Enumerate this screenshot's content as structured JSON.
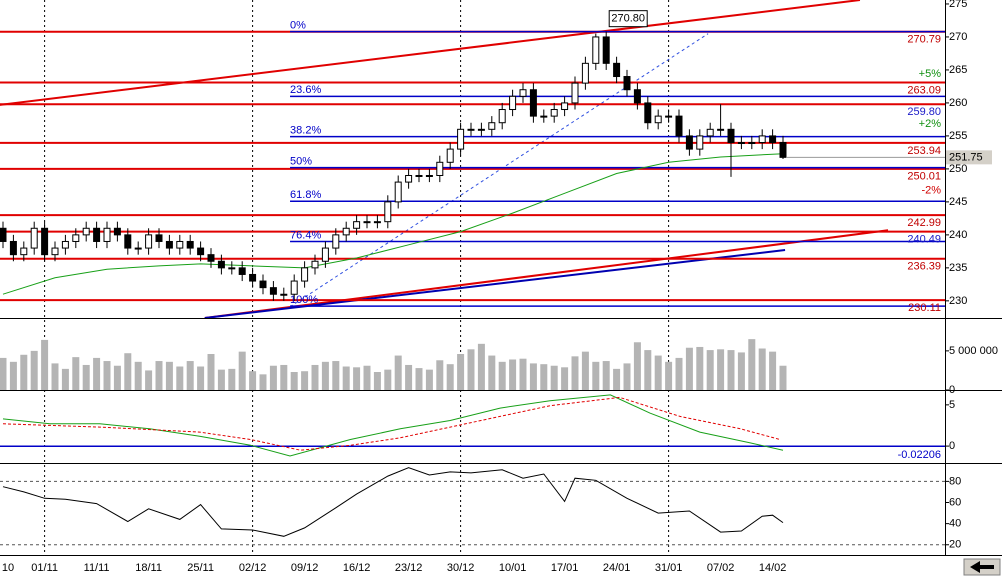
{
  "chart_data": [
    {
      "type": "candlestick",
      "categories": [
        "10",
        null,
        null,
        null,
        "01/11",
        null,
        null,
        null,
        null,
        "11/11",
        null,
        null,
        null,
        null,
        "18/11",
        null,
        null,
        null,
        null,
        "25/11",
        null,
        null,
        null,
        null,
        "02/12",
        null,
        null,
        null,
        null,
        "09/12",
        null,
        null,
        null,
        null,
        "16/12",
        null,
        null,
        null,
        null,
        "23/12",
        null,
        null,
        null,
        null,
        "30/12",
        null,
        null,
        null,
        null,
        "10/01",
        null,
        null,
        null,
        null,
        "17/01",
        null,
        null,
        null,
        null,
        "24/01",
        null,
        null,
        null,
        null,
        "31/01",
        null,
        null,
        null,
        null,
        "07/02",
        null,
        null,
        null,
        null,
        "14/02",
        null
      ],
      "open": [
        241,
        239,
        237,
        238,
        241,
        237,
        238,
        239,
        240,
        241,
        239,
        241,
        240,
        238,
        238,
        240,
        239,
        238,
        239,
        238,
        237,
        236,
        235,
        235,
        234,
        233,
        232,
        231,
        231,
        233,
        235,
        236,
        238,
        240,
        241,
        242,
        242,
        242,
        245,
        248,
        249,
        249,
        249,
        251,
        253,
        256,
        256,
        256,
        257,
        259,
        261,
        262,
        258,
        258,
        259,
        260,
        263,
        266,
        270,
        266,
        264,
        262,
        260,
        257,
        258,
        258,
        255,
        253,
        255,
        256,
        256,
        254,
        254,
        254,
        255,
        254
      ],
      "high": [
        242,
        240,
        239,
        242,
        242,
        239,
        240,
        241,
        242,
        242,
        242,
        242,
        241,
        239,
        241,
        241,
        240,
        240,
        240,
        239,
        238,
        237,
        236,
        236,
        235,
        234,
        233,
        232,
        234,
        236,
        237,
        239,
        241,
        242,
        243,
        243,
        243,
        246,
        249,
        250,
        250,
        250,
        252,
        254,
        257,
        257,
        257,
        258,
        260,
        262,
        263,
        263,
        259,
        260,
        261,
        264,
        267,
        270.5,
        270.8,
        267,
        265,
        263,
        261,
        259,
        259,
        259,
        256,
        256,
        257,
        259.8,
        257,
        255,
        255,
        256,
        256,
        255
      ],
      "low": [
        238,
        236,
        236,
        237,
        236,
        236,
        237,
        238,
        239,
        238,
        238,
        239,
        237,
        237,
        237,
        238,
        237,
        237,
        237,
        236,
        235,
        234,
        234,
        233,
        232,
        231,
        230,
        230,
        230,
        232,
        234,
        235,
        237,
        239,
        240,
        241,
        241,
        241,
        244,
        247,
        248,
        248,
        248,
        250,
        252,
        255,
        255,
        255,
        256,
        258,
        260,
        257,
        257,
        257,
        258,
        259,
        262,
        265,
        265,
        263,
        261,
        259,
        256,
        256,
        257,
        254,
        252,
        252,
        254,
        255,
        248.8,
        253,
        253,
        253,
        253,
        251.5
      ],
      "close": [
        239,
        237,
        238,
        241,
        237,
        238,
        239,
        240,
        241,
        239,
        241,
        240,
        238,
        238,
        240,
        239,
        238,
        239,
        238,
        237,
        236,
        235,
        235,
        234,
        233,
        232,
        231,
        231,
        233,
        235,
        236,
        238,
        240,
        241,
        242,
        242,
        242,
        245,
        248,
        249,
        249,
        249,
        251,
        253,
        256,
        256,
        256,
        257,
        259,
        261,
        262,
        258,
        258,
        259,
        260,
        263,
        266,
        270,
        266,
        264,
        262,
        260,
        257,
        258,
        258,
        255,
        253,
        255,
        256,
        256,
        254,
        254,
        254,
        255,
        254,
        251.75
      ],
      "color_up": "#ffffff",
      "color_down": "#000000",
      "ylim": [
        227.4,
        275.6
      ],
      "yticks": [
        230,
        235,
        240,
        245,
        250,
        255,
        260,
        265,
        270,
        275
      ],
      "ma": {
        "color": "#18a018",
        "x": [
          0,
          5,
          10,
          15,
          19,
          24,
          29,
          34,
          39,
          44,
          49,
          54,
          59,
          64,
          69,
          75
        ],
        "values": [
          231,
          233.5,
          234.8,
          235.3,
          235.6,
          235.3,
          235,
          236.5,
          238.5,
          240.5,
          243.3,
          246.3,
          249.3,
          251,
          251.8,
          252.3
        ]
      },
      "levels": [
        {
          "value": 270.79,
          "label": "270.79",
          "color": "#e00000",
          "label_color": "#c00000"
        },
        {
          "value": 263.09,
          "label": "263.09",
          "color": "#e00000",
          "label_color": "#c00000"
        },
        {
          "value": 259.8,
          "label": "259.80",
          "color": "#e00000",
          "label_color": "#1a1ac8"
        },
        {
          "value": 253.94,
          "label": "253.94",
          "color": "#e00000",
          "label_color": "#c00000"
        },
        {
          "value": 250.01,
          "label": "250.01",
          "color": "#e00000",
          "label_color": "#c00000"
        },
        {
          "value": 242.99,
          "label": "242.99",
          "color": "#e00000",
          "label_color": "#c00000"
        },
        {
          "value": 240.49,
          "label": "240.49",
          "color": "#e00000",
          "label_color": "#1a1ac8"
        },
        {
          "value": 236.39,
          "label": "236.39",
          "color": "#e00000",
          "label_color": "#c00000"
        },
        {
          "value": 230.11,
          "label": "230.11",
          "color": "#e00000",
          "label_color": "#c00000"
        }
      ],
      "fib": {
        "color": "#0000c8",
        "x": 27.6,
        "levels": [
          {
            "label": "0%",
            "value": 270.8
          },
          {
            "label": "23.6%",
            "value": 261
          },
          {
            "label": "38.2%",
            "value": 254.9
          },
          {
            "label": "50%",
            "value": 250.2
          },
          {
            "label": "61.8%",
            "value": 245.1
          },
          {
            "label": "76.4%",
            "value": 239
          },
          {
            "label": "100%",
            "value": 229.2
          }
        ]
      },
      "trend_lines": [
        {
          "color": "#e00000",
          "x": [
            -0.3,
            82.4
          ],
          "y": [
            259.7,
            275.6
          ]
        },
        {
          "color": "#e00000",
          "x": [
            19.4,
            85.1
          ],
          "y": [
            227.4,
            240.7
          ]
        },
        {
          "color": "#0000b0",
          "x": [
            19.4,
            75.2
          ],
          "y": [
            227.4,
            237.7
          ]
        },
        {
          "color": "#3050e0",
          "dash": true,
          "x": [
            27.6,
            67.8
          ],
          "y": [
            229.1,
            270.5
          ]
        }
      ],
      "pct_labels": [
        {
          "pct": 5,
          "label": "+5%",
          "color": "#109010"
        },
        {
          "pct": 2,
          "label": "+2%",
          "color": "#109010"
        },
        {
          "pct": -2,
          "label": "-2%",
          "color": "#d00000"
        }
      ],
      "last": {
        "value": 251.75,
        "label": "251.75"
      },
      "annotation": {
        "text": "270.80",
        "x": 58,
        "y": 270.8
      }
    },
    {
      "type": "bar",
      "color": "#b4b4b4",
      "ylim": [
        0,
        9200000
      ],
      "yticks": [
        0,
        {
          "value": 5000000,
          "label": "5 000 000"
        }
      ],
      "values": [
        4100000,
        3600000,
        4500000,
        5000000,
        6400000,
        3400000,
        2700000,
        4200000,
        3200000,
        4100000,
        3700000,
        3100000,
        4700000,
        3600000,
        2500000,
        3700000,
        3600000,
        3000000,
        3700000,
        3000000,
        4600000,
        2600000,
        2700000,
        4900000,
        2400000,
        2000000,
        3100000,
        3200000,
        2300000,
        2400000,
        3200000,
        3600000,
        3700000,
        3000000,
        2900000,
        3100000,
        2300000,
        2600000,
        4400000,
        3200000,
        2800000,
        2600000,
        3800000,
        3300000,
        4600000,
        5200000,
        5900000,
        4400000,
        3600000,
        3900000,
        4000000,
        3400000,
        3300000,
        3100000,
        2900000,
        4300000,
        4900000,
        3600000,
        3700000,
        2700000,
        3400000,
        6100000,
        5100000,
        4400000,
        3600000,
        4100000,
        5400000,
        5500000,
        5100000,
        5200000,
        5100000,
        4800000,
        6500000,
        5300000,
        4900000,
        3100000
      ]
    },
    {
      "type": "line",
      "ylim": [
        -2.05,
        6.8
      ],
      "yticks": [
        0,
        5
      ],
      "series": [
        {
          "color": "#18a018",
          "x": [
            0,
            4.5,
            9.3,
            14.1,
            18.9,
            23.8,
            27.6,
            33.4,
            38.2,
            43,
            47.8,
            52.6,
            58.4,
            62.2,
            67,
            71.8,
            75
          ],
          "values": [
            3.3,
            2.7,
            2.7,
            2.1,
            1.2,
            0.1,
            -1.2,
            0.8,
            2.1,
            3.1,
            4.6,
            5.5,
            6.2,
            4,
            1.7,
            0.4,
            -0.5
          ]
        },
        {
          "color": "#e00000",
          "dash": true,
          "x": [
            0,
            9.3,
            18.9,
            23.8,
            28.6,
            33.4,
            38.2,
            43,
            47.8,
            52.6,
            59.3,
            65.1,
            70.9,
            74.7
          ],
          "values": [
            2.7,
            2.3,
            1.7,
            0.8,
            -0.5,
            0.1,
            1,
            2.3,
            3.6,
            4.9,
            5.9,
            3.6,
            2.1,
            0.8
          ]
        }
      ],
      "last": {
        "value": -0.02206,
        "label": "-0.02206",
        "color": "#0000c8"
      }
    },
    {
      "type": "line",
      "ylim": [
        10.3,
        97.4
      ],
      "yticks": [
        20,
        40,
        60,
        80
      ],
      "ref_lines": [
        20,
        80
      ],
      "series": [
        {
          "color": "#000000",
          "x": [
            0,
            2,
            4,
            6,
            9,
            12,
            14,
            17,
            19,
            21,
            24,
            27,
            29,
            32,
            34,
            37,
            39,
            41,
            43,
            45,
            48,
            50,
            52,
            54,
            55,
            57,
            60,
            63,
            66,
            69,
            71,
            73,
            74,
            75
          ],
          "values": [
            75,
            70,
            64,
            63,
            59,
            42,
            54,
            44,
            58,
            35,
            34,
            28,
            36,
            55,
            68,
            85,
            93,
            86,
            89,
            88,
            91,
            83,
            87,
            61,
            83,
            81,
            64,
            50,
            52,
            32,
            33,
            47,
            48,
            41
          ]
        }
      ]
    }
  ]
}
